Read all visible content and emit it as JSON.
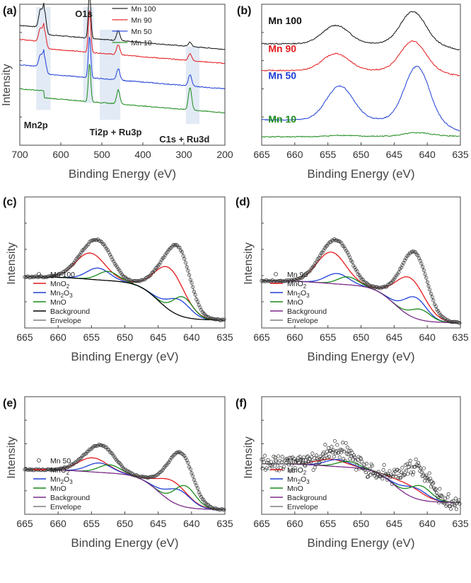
{
  "figure": {
    "y_axis_label": "Intensity",
    "x_axis_label": "Binding Energy (eV)"
  },
  "colors": {
    "mn100": "#111111",
    "mn90": "#e41a1c",
    "mn50": "#1f3fd6",
    "mn10": "#1a8a1a",
    "mno2": "#e41a1c",
    "mn2o3": "#1f3fd6",
    "mno": "#1a8a1a",
    "bg_black": "#000000",
    "bg_purple": "#7b2a8a",
    "envelope": "#7f7f7f",
    "highlight": "#dde6f3"
  },
  "chart_data": [
    {
      "panel": "(a)",
      "type": "line",
      "title": "",
      "xlabel": "Binding Energy (eV)",
      "ylabel": "Intensity",
      "xlim": [
        700,
        200
      ],
      "xticks": [
        700,
        600,
        500,
        400,
        300,
        200
      ],
      "legend": [
        "Mn 100",
        "Mn 90",
        "Mn 50",
        "Mn 10"
      ],
      "legend_position": "top-right",
      "annotations": [
        "O1s",
        "Mn2p",
        "Ti2p + Ru3p",
        "C1s + Ru3d"
      ],
      "series": [
        {
          "name": "Mn 100",
          "baseline": 0.8,
          "peaks": [
            {
              "x": 650,
              "h": 0.12
            },
            {
              "x": 640,
              "h": 0.17
            },
            {
              "x": 530,
              "h": 0.33
            },
            {
              "x": 460,
              "h": 0.07
            },
            {
              "x": 285,
              "h": 0.03
            }
          ]
        },
        {
          "name": "Mn 90",
          "baseline": 0.7,
          "peaks": [
            {
              "x": 650,
              "h": 0.09
            },
            {
              "x": 640,
              "h": 0.13
            },
            {
              "x": 530,
              "h": 0.3
            },
            {
              "x": 460,
              "h": 0.07
            },
            {
              "x": 285,
              "h": 0.05
            }
          ]
        },
        {
          "name": "Mn 50",
          "baseline": 0.52,
          "peaks": [
            {
              "x": 650,
              "h": 0.08
            },
            {
              "x": 640,
              "h": 0.12
            },
            {
              "x": 530,
              "h": 0.29
            },
            {
              "x": 460,
              "h": 0.08
            },
            {
              "x": 285,
              "h": 0.08
            }
          ]
        },
        {
          "name": "Mn 10",
          "baseline": 0.35,
          "peaks": [
            {
              "x": 530,
              "h": 0.27
            },
            {
              "x": 460,
              "h": 0.1
            },
            {
              "x": 285,
              "h": 0.16
            }
          ]
        }
      ]
    },
    {
      "panel": "(b)",
      "type": "line",
      "xlabel": "Binding Energy (eV)",
      "ylabel": "",
      "xlim": [
        665,
        635
      ],
      "xticks": [
        665,
        660,
        655,
        650,
        645,
        640,
        635
      ],
      "labels": [
        "Mn 100",
        "Mn 90",
        "Mn 50",
        "Mn 10"
      ],
      "series": [
        {
          "name": "Mn 100",
          "baseline": 0.72,
          "peak1_x": 653.8,
          "peak1_h": 0.13,
          "peak2_x": 642.2,
          "peak2_h": 0.22
        },
        {
          "name": "Mn 90",
          "baseline": 0.53,
          "peak1_x": 653.8,
          "peak1_h": 0.12,
          "peak2_x": 642.2,
          "peak2_h": 0.2
        },
        {
          "name": "Mn 50",
          "baseline": 0.18,
          "peak1_x": 653.2,
          "peak1_h": 0.24,
          "peak2_x": 641.6,
          "peak2_h": 0.37
        },
        {
          "name": "Mn 10",
          "baseline": 0.06,
          "peak1_x": 653.0,
          "peak1_h": 0.01,
          "peak2_x": 641.5,
          "peak2_h": 0.02
        }
      ]
    },
    {
      "panel": "(c)",
      "type": "line",
      "sample": "Mn 100",
      "xlabel": "Binding Energy (eV)",
      "ylabel": "Intensity",
      "xlim": [
        665,
        635
      ],
      "xticks": [
        665,
        660,
        655,
        650,
        645,
        640,
        635
      ],
      "legend": [
        "Mn 100",
        "MnO2",
        "Mn2O3",
        "MnO",
        "Background",
        "Envelope"
      ],
      "legend_position": "bottom-left",
      "background_color": "black",
      "bg_low": 0.06,
      "bg_high": 0.36,
      "bg_step_x": 645,
      "components": [
        {
          "name": "MnO2",
          "x": [
            655.2,
            643.3
          ],
          "h": [
            0.2,
            0.32
          ],
          "w": 2.2
        },
        {
          "name": "Mn2O3",
          "x": [
            654.0,
            641.9
          ],
          "h": [
            0.09,
            0.12
          ],
          "w": 1.7
        },
        {
          "name": "MnO",
          "x": [
            652.5,
            641.3
          ],
          "h": [
            0.07,
            0.15
          ],
          "w": 1.5
        }
      ]
    },
    {
      "panel": "(d)",
      "type": "line",
      "sample": "Mn 90",
      "xlabel": "Binding Energy (eV)",
      "ylabel": "Intensity",
      "xlim": [
        665,
        635
      ],
      "xticks": [
        665,
        660,
        655,
        650,
        645,
        640,
        635
      ],
      "legend": [
        "Mn 90",
        "MnO2",
        "Mn2O3",
        "MnO",
        "Background",
        "Envelope"
      ],
      "legend_position": "bottom-left",
      "background_color": "purple",
      "bg_low": 0.04,
      "bg_high": 0.33,
      "bg_step_x": 645,
      "components": [
        {
          "name": "MnO2",
          "x": [
            654.5,
            642.6
          ],
          "h": [
            0.24,
            0.29
          ],
          "w": 2.2
        },
        {
          "name": "Mn2O3",
          "x": [
            653.6,
            641.8
          ],
          "h": [
            0.08,
            0.16
          ],
          "w": 1.7
        },
        {
          "name": "MnO",
          "x": [
            652.0,
            641.0
          ],
          "h": [
            0.06,
            0.08
          ],
          "w": 1.5
        }
      ]
    },
    {
      "panel": "(e)",
      "type": "line",
      "sample": "Mn 50",
      "xlabel": "Binding Energy (eV)",
      "ylabel": "Intensity",
      "xlim": [
        665,
        635
      ],
      "xticks": [
        665,
        660,
        655,
        650,
        645,
        640,
        635
      ],
      "legend": [
        "Mn 50",
        "MnO2",
        "Mn2O3",
        "MnO",
        "Background",
        "Envelope"
      ],
      "legend_position": "bottom-left",
      "background_color": "purple",
      "bg_low": 0.04,
      "bg_high": 0.35,
      "bg_step_x": 645,
      "components": [
        {
          "name": "MnO2",
          "x": [
            654.8,
            642.8
          ],
          "h": [
            0.12,
            0.18
          ],
          "w": 2.2
        },
        {
          "name": "Mn2O3",
          "x": [
            653.8,
            641.9
          ],
          "h": [
            0.08,
            0.13
          ],
          "w": 1.8
        },
        {
          "name": "MnO",
          "x": [
            652.3,
            641.0
          ],
          "h": [
            0.07,
            0.18
          ],
          "w": 1.6
        }
      ]
    },
    {
      "panel": "(f)",
      "type": "line",
      "sample": "Mn 10",
      "xlabel": "Binding Energy (eV)",
      "ylabel": "Intensity",
      "xlim": [
        665,
        635
      ],
      "xticks": [
        665,
        660,
        655,
        650,
        645,
        640,
        635
      ],
      "legend": [
        "Mn 10",
        "MnO2",
        "Mn2O3",
        "MnO",
        "Background",
        "Envelope"
      ],
      "legend_position": "bottom-left",
      "background_color": "purple",
      "noisy": true,
      "bg_low": 0.1,
      "bg_high": 0.4,
      "bg_step_x": 645,
      "components": [
        {
          "name": "MnO2",
          "x": [
            654.5,
            642.8
          ],
          "h": [
            0.06,
            0.09
          ],
          "w": 2.2
        },
        {
          "name": "Mn2O3",
          "x": [
            653.5,
            641.8
          ],
          "h": [
            0.06,
            0.09
          ],
          "w": 1.8
        },
        {
          "name": "MnO",
          "x": [
            652.0,
            641.0
          ],
          "h": [
            0.05,
            0.12
          ],
          "w": 1.6
        }
      ]
    }
  ]
}
